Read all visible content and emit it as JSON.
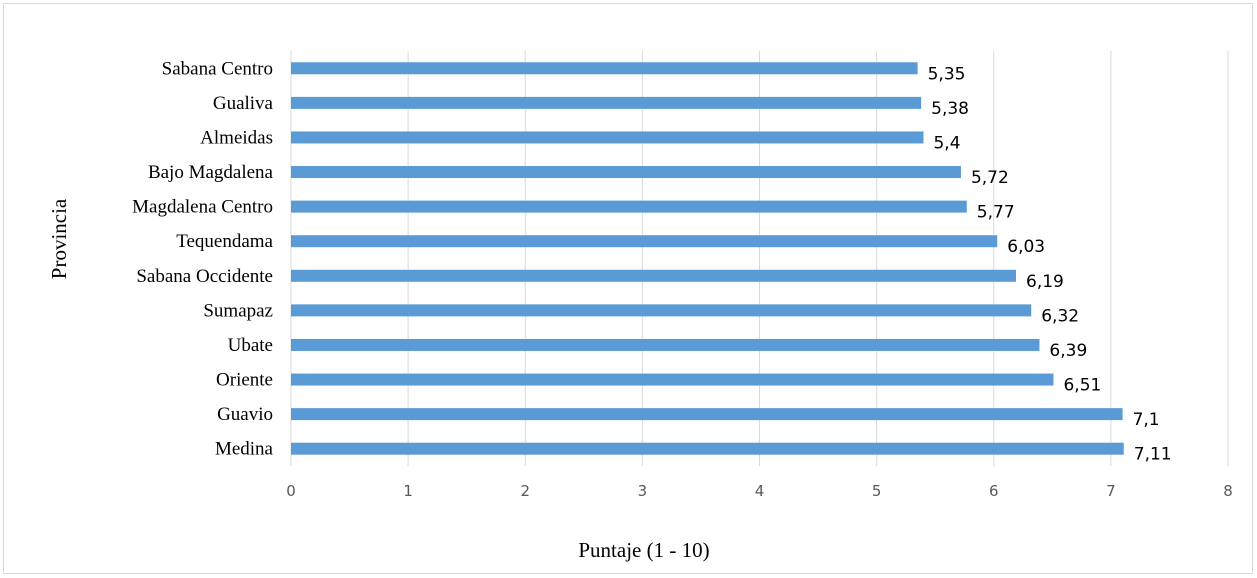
{
  "chart_data": {
    "type": "bar",
    "orientation": "horizontal",
    "categories": [
      "Sabana Centro",
      "Gualiva",
      "Almeidas",
      "Bajo Magdalena",
      "Magdalena Centro",
      "Tequendama",
      "Sabana Occidente",
      "Sumapaz",
      "Ubate",
      "Oriente",
      "Guavio",
      "Medina"
    ],
    "values": [
      5.35,
      5.38,
      5.4,
      5.72,
      5.77,
      6.03,
      6.19,
      6.32,
      6.39,
      6.51,
      7.1,
      7.11
    ],
    "value_labels": [
      "5,35",
      "5,38",
      "5,4",
      "5,72",
      "5,77",
      "6,03",
      "6,19",
      "6,32",
      "6,39",
      "6,51",
      "7,1",
      "7,11"
    ],
    "xlabel": "Puntaje (1 - 10)",
    "ylabel": "Provincia",
    "xlim": [
      0,
      8
    ],
    "x_ticks": [
      "0",
      "1",
      "2",
      "3",
      "4",
      "5",
      "6",
      "7",
      "8"
    ],
    "grid": "vertical",
    "bar_color": "#5b9bd5",
    "grid_color": "#d9d9d9"
  }
}
